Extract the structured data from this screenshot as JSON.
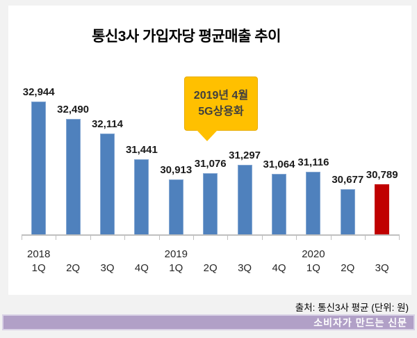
{
  "title": "통신3사 가입자당 평균매출 추이",
  "callout": {
    "line1": "2019년 4월",
    "line2": "5G상용화"
  },
  "source_note": "출처: 통신3사 평균 (단위: 원)",
  "banner": {
    "text": "소비자가 만드는 신문"
  },
  "colors": {
    "bar_default": "#4f81bd",
    "bar_highlight": "#c00000",
    "callout_fill": "#ffc000",
    "banner_fill": "#b1a0c7",
    "axis": "#bfbfbf",
    "page_background": "#f2f2f2",
    "panel_background": "#ffffff"
  },
  "chart_data": {
    "type": "bar",
    "title": "통신3사 가입자당 평균매출 추이",
    "categories": [
      "1Q",
      "2Q",
      "3Q",
      "4Q",
      "1Q",
      "2Q",
      "3Q",
      "4Q",
      "1Q",
      "2Q",
      "3Q"
    ],
    "year_groups": [
      {
        "label": "2018",
        "start_index": 0
      },
      {
        "label": "2019",
        "start_index": 4
      },
      {
        "label": "2020",
        "start_index": 8
      }
    ],
    "values": [
      32944,
      32490,
      32114,
      31441,
      30913,
      31076,
      31297,
      31064,
      31116,
      30677,
      30789
    ],
    "value_labels": [
      "32,944",
      "32,490",
      "32,114",
      "31,441",
      "30,913",
      "31,076",
      "31,297",
      "31,064",
      "31,116",
      "30,677",
      "30,789"
    ],
    "highlight_index": 10,
    "annotation": "2019년 4월 5G상용화",
    "unit": "원",
    "xlabel": "",
    "ylabel": "",
    "ylim": [
      29500,
      33100
    ],
    "grid": false,
    "legend": false
  }
}
